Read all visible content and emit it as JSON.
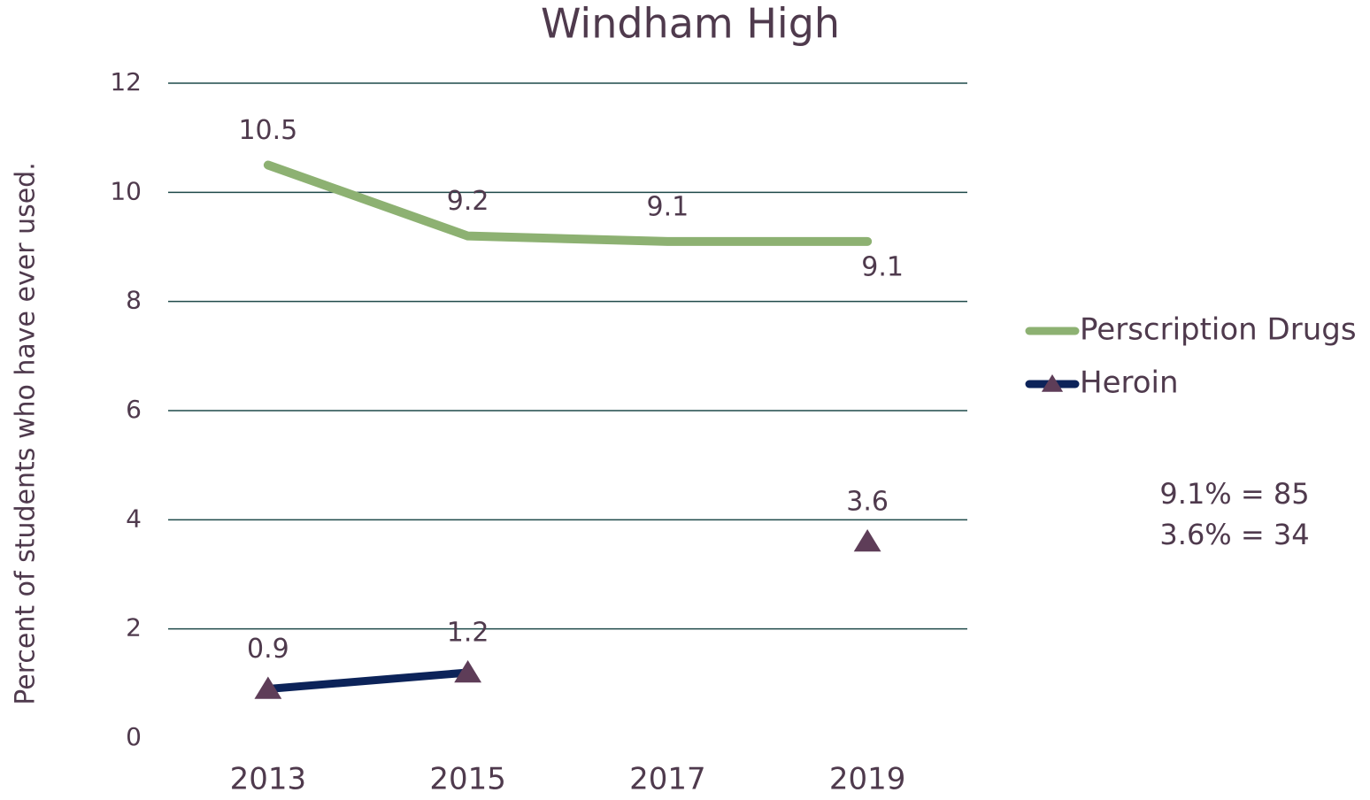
{
  "chart_data": {
    "type": "line",
    "title": "Windham High",
    "y_label": "Percent of students who have ever used.",
    "categories": [
      "2013",
      "2015",
      "2017",
      "2019"
    ],
    "series": [
      {
        "name": "Perscription Drugs",
        "color": "#8db172",
        "values": [
          10.5,
          9.2,
          9.1,
          9.1
        ]
      },
      {
        "name": "Heroin",
        "color": "#0c2359",
        "marker_color": "#5e3d58",
        "values": [
          0.9,
          1.2,
          null,
          3.6
        ]
      }
    ],
    "ylim": [
      0,
      12
    ],
    "yticks": [
      0,
      2,
      4,
      6,
      8,
      10,
      12
    ],
    "grid": true,
    "legend": "right",
    "annotations": [
      "9.1% = 85",
      "3.6% = 34"
    ]
  }
}
